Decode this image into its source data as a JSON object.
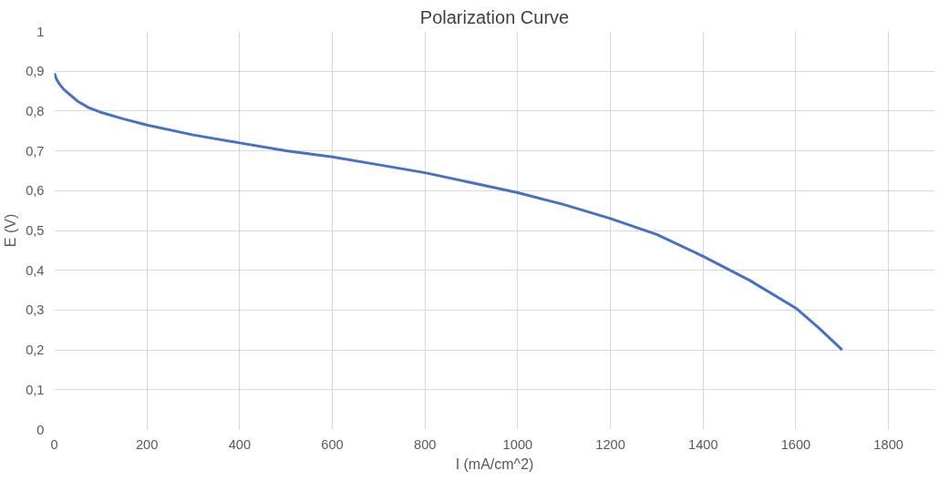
{
  "chart_data": {
    "type": "line",
    "title": "Polarization Curve",
    "xlabel": "I (mA/cm^2)",
    "ylabel": "E (V)",
    "x": [
      0,
      5,
      10,
      20,
      35,
      50,
      75,
      100,
      150,
      200,
      300,
      400,
      500,
      600,
      700,
      800,
      900,
      1000,
      1100,
      1200,
      1300,
      1400,
      1500,
      1600,
      1650,
      1700
    ],
    "series": [
      {
        "color": "#4472c4",
        "values": [
          0.895,
          0.88,
          0.87,
          0.855,
          0.84,
          0.825,
          0.808,
          0.797,
          0.78,
          0.765,
          0.74,
          0.72,
          0.7,
          0.685,
          0.665,
          0.645,
          0.62,
          0.595,
          0.565,
          0.53,
          0.49,
          0.435,
          0.375,
          0.305,
          0.255,
          0.2
        ]
      }
    ],
    "xlim": [
      0,
      1900
    ],
    "ylim": [
      0,
      1
    ],
    "xticks": [
      0,
      200,
      400,
      600,
      800,
      1000,
      1200,
      1400,
      1600,
      1800
    ],
    "yticks": [
      0,
      {
        "value": 0.1,
        "label": "0,1"
      },
      {
        "value": 0.2,
        "label": "0,2"
      },
      {
        "value": 0.3,
        "label": "0,3"
      },
      {
        "value": 0.4,
        "label": "0,4"
      },
      {
        "value": 0.5,
        "label": "0,5"
      },
      {
        "value": 0.6,
        "label": "0,6"
      },
      {
        "value": 0.7,
        "label": "0,7"
      },
      {
        "value": 0.8,
        "label": "0,8"
      },
      {
        "value": 0.9,
        "label": "0,9"
      },
      1
    ],
    "grid": true,
    "marker": "none",
    "line_style": "solid"
  }
}
